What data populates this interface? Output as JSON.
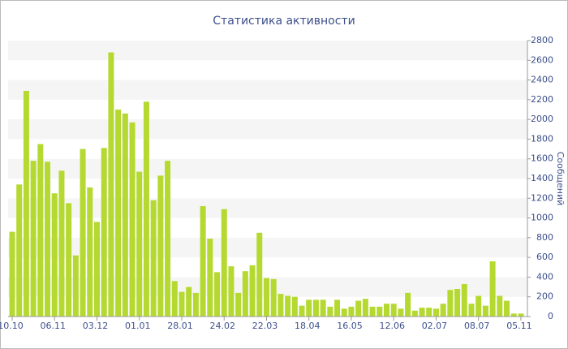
{
  "chart_data": {
    "type": "bar",
    "title": "Статистика активности",
    "y_label": "Сообщений",
    "categories": [
      "10.10",
      null,
      null,
      null,
      null,
      null,
      "06.11",
      null,
      null,
      null,
      null,
      null,
      "03.12",
      null,
      null,
      null,
      null,
      null,
      "01.01",
      null,
      null,
      null,
      null,
      null,
      "28.01",
      null,
      null,
      null,
      null,
      null,
      "24.02",
      null,
      null,
      null,
      null,
      null,
      "22.03",
      null,
      null,
      null,
      null,
      null,
      "18.04",
      null,
      null,
      null,
      null,
      null,
      "16.05",
      null,
      null,
      null,
      null,
      null,
      "12.06",
      null,
      null,
      null,
      null,
      null,
      "02.07",
      null,
      null,
      null,
      null,
      null,
      "08.07",
      null,
      null,
      null,
      null,
      null,
      "05.11"
    ],
    "values": [
      860,
      1340,
      2290,
      1580,
      1750,
      1570,
      1250,
      1480,
      1150,
      620,
      1700,
      1310,
      960,
      1710,
      2680,
      2100,
      2060,
      1970,
      1470,
      2180,
      1180,
      1430,
      1580,
      360,
      250,
      300,
      240,
      1120,
      790,
      450,
      1090,
      510,
      240,
      460,
      520,
      850,
      390,
      380,
      230,
      210,
      200,
      110,
      170,
      170,
      170,
      100,
      170,
      80,
      100,
      160,
      180,
      100,
      100,
      130,
      130,
      80,
      240,
      60,
      90,
      90,
      80,
      130,
      270,
      280,
      330,
      130,
      210,
      110,
      560,
      210,
      160,
      30,
      30
    ],
    "color": "#b5d930",
    "ylim": [
      0,
      2800
    ],
    "yticks": [
      0,
      200,
      400,
      600,
      800,
      1000,
      1200,
      1400,
      1600,
      1800,
      2000,
      2200,
      2400,
      2600,
      2800
    ],
    "grid": true
  }
}
